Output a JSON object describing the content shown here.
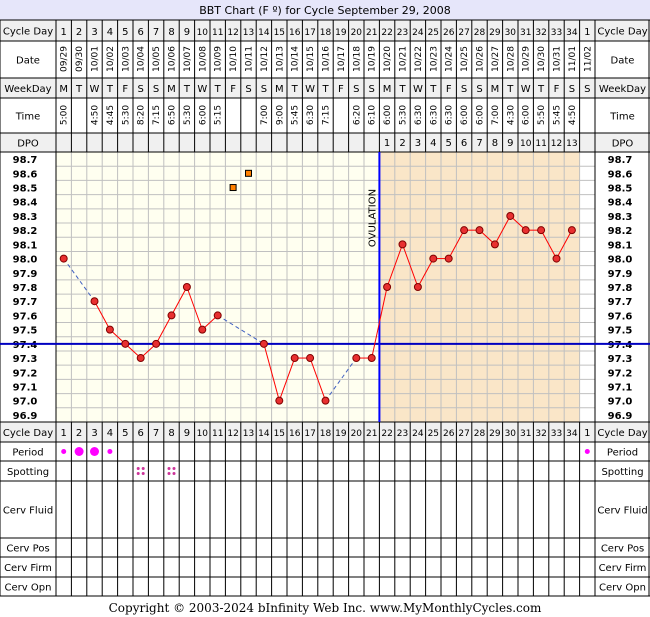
{
  "chart_data": {
    "type": "line",
    "title": "BBT Chart (F º) for Cycle September 29, 2008",
    "row_labels": {
      "cycle_day": "Cycle Day",
      "date": "Date",
      "weekday": "WeekDay",
      "time": "Time",
      "dpo": "DPO",
      "period": "Period",
      "spotting": "Spotting",
      "cerv_fluid": "Cerv Fluid",
      "cerv_pos": "Cerv Pos",
      "cerv_firm": "Cerv Firm",
      "cerv_opn": "Cerv Opn"
    },
    "cycle_days": [
      "1",
      "2",
      "3",
      "4",
      "5",
      "6",
      "7",
      "8",
      "9",
      "10",
      "11",
      "12",
      "13",
      "14",
      "15",
      "16",
      "17",
      "18",
      "19",
      "20",
      "21",
      "22",
      "23",
      "24",
      "25",
      "26",
      "27",
      "28",
      "29",
      "30",
      "31",
      "32",
      "33",
      "34",
      "1"
    ],
    "dates": [
      "09/29",
      "09/30",
      "10/01",
      "10/02",
      "10/03",
      "10/04",
      "10/05",
      "10/06",
      "10/07",
      "10/08",
      "10/09",
      "10/10",
      "10/11",
      "10/12",
      "10/13",
      "10/14",
      "10/15",
      "10/16",
      "10/17",
      "10/18",
      "10/19",
      "10/20",
      "10/21",
      "10/22",
      "10/23",
      "10/24",
      "10/25",
      "10/26",
      "10/27",
      "10/28",
      "10/29",
      "10/30",
      "10/31",
      "11/01",
      "11/02"
    ],
    "weekdays": [
      "M",
      "T",
      "W",
      "T",
      "F",
      "S",
      "S",
      "M",
      "T",
      "W",
      "T",
      "F",
      "S",
      "S",
      "M",
      "T",
      "W",
      "T",
      "F",
      "S",
      "S",
      "M",
      "T",
      "W",
      "T",
      "F",
      "S",
      "S",
      "M",
      "T",
      "W",
      "T",
      "F",
      "S",
      "S"
    ],
    "times": [
      "5:00",
      "",
      "4:50",
      "4:45",
      "5:30",
      "8:20",
      "7:15",
      "6:50",
      "5:30",
      "6:00",
      "5:15",
      "",
      "",
      "7:00",
      "9:00",
      "5:45",
      "6:30",
      "7:15",
      "",
      "6:20",
      "6:10",
      "6:00",
      "5:30",
      "6:30",
      "6:30",
      "6:30",
      "6:00",
      "6:00",
      "7:00",
      "4:30",
      "6:00",
      "5:50",
      "5:45",
      "4:50",
      ""
    ],
    "dpo": [
      "",
      "",
      "",
      "",
      "",
      "",
      "",
      "",
      "",
      "",
      "",
      "",
      "",
      "",
      "",
      "",
      "",
      "",
      "",
      "",
      "",
      "1",
      "2",
      "3",
      "4",
      "5",
      "6",
      "7",
      "8",
      "9",
      "10",
      "11",
      "12",
      "13",
      ""
    ],
    "y_ticks": [
      "98.7",
      "98.6",
      "98.5",
      "98.4",
      "98.3",
      "98.2",
      "98.1",
      "98.0",
      "97.9",
      "97.8",
      "97.7",
      "97.6",
      "97.5",
      "97.4",
      "97.3",
      "97.2",
      "97.1",
      "97.0",
      "96.9"
    ],
    "ylim": [
      96.9,
      98.7
    ],
    "temperatures": [
      98.0,
      null,
      97.7,
      97.5,
      97.4,
      97.3,
      97.4,
      97.6,
      97.8,
      97.5,
      97.6,
      null,
      null,
      97.4,
      97.0,
      97.3,
      97.3,
      97.0,
      null,
      97.3,
      97.3,
      97.8,
      98.1,
      97.8,
      98.0,
      98.0,
      98.2,
      98.2,
      98.1,
      98.3,
      98.2,
      98.2,
      98.0,
      98.2,
      null
    ],
    "excluded_temperatures": [
      {
        "day_index": 11,
        "value": 98.5
      },
      {
        "day_index": 12,
        "value": 98.6
      }
    ],
    "coverline": 97.4,
    "ovulation_day_index": 20,
    "ovulation_label": "OVULATION",
    "period": [
      "medium",
      "heavy",
      "heavy",
      "medium",
      "",
      "",
      "",
      "",
      "",
      "",
      "",
      "",
      "",
      "",
      "",
      "",
      "",
      "",
      "",
      "",
      "",
      "",
      "",
      "",
      "",
      "",
      "",
      "",
      "",
      "",
      "",
      "",
      "",
      "",
      "light"
    ],
    "spotting": [
      "",
      "",
      "",
      "",
      "",
      "spot",
      "",
      "spot",
      "",
      "",
      "",
      "",
      "",
      "",
      "",
      "",
      "",
      "",
      "",
      "",
      "",
      "",
      "",
      "",
      "",
      "",
      "",
      "",
      "",
      "",
      "",
      "",
      "",
      "",
      ""
    ],
    "colors": {
      "title_band": "#e6e6fa",
      "header_band": "#f0f0f0",
      "follicular": "#fffff0",
      "luteal": "#fae6c8",
      "grid": "#c0c0c0",
      "line": "#ff0000",
      "dot_fill": "#e83030",
      "excluded_fill": "#ff8000",
      "coverline": "#0000c0",
      "ovulation_line": "#0000ff",
      "period": "#ff00ff",
      "spotting": "#cc3399"
    },
    "footer": "Copyright © 2003-2024 bInfinity Web Inc.     www.MyMonthlyCycles.com"
  }
}
